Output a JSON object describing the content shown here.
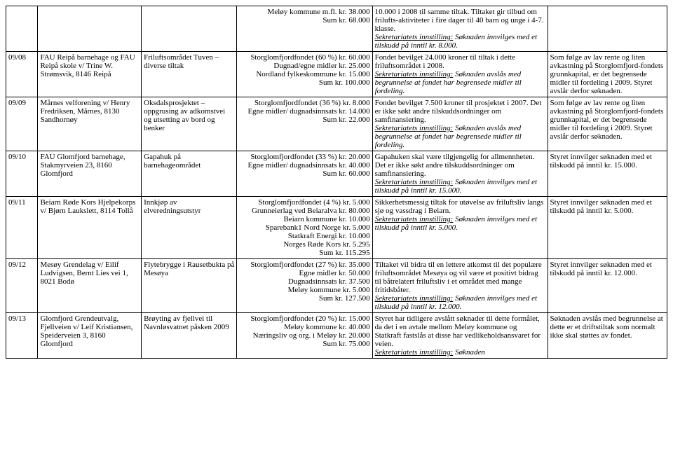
{
  "rows": [
    {
      "id": "",
      "applicant": "",
      "project": "",
      "financing": [
        "Meløy kommune m.fl. kr. 38.000",
        "Sum kr. 68.000"
      ],
      "evaluation_pre": "10.000 i 2008 til samme tiltak. Tiltaket gir tilbud om frilufts-aktiviteter i fire dager til 40 barn og unge i 4-7. klasse.",
      "evaluation_sek_label": "Sekretariatets innstilling:",
      "evaluation_sek_text": "Søknaden innvilges med et tilskudd på inntil kr. 8.000.",
      "decision": ""
    },
    {
      "id": "09/08",
      "applicant": "FAU Reipå barnehage og FAU Reipå skole v/ Trine W. Strømsvik, 8146 Reipå",
      "project": "Friluftsområdet Tuven – diverse tiltak",
      "financing": [
        "Storglomfjordfondet (60 %) kr. 60.000",
        "Dugnad/egne midler kr. 25.000",
        "Nordland fylkeskommune kr. 15.000",
        "Sum kr. 100.000"
      ],
      "evaluation_pre": "Fondet bevilget 24.000 kroner til tiltak i dette friluftsområdet i 2008.",
      "evaluation_sek_label": "Sekretariatets innstilling:",
      "evaluation_sek_text": "Søknaden avslås med begrunnelse at fondet har begrensede midler til fordeling.",
      "decision": "Som følge av lav rente og liten avkastning på Storglomfjord-fondets grunnkapital, er det begrensede midler til fordeling i 2009. Styret avslår derfor søknaden."
    },
    {
      "id": "09/09",
      "applicant": "Mårnes velforening v/ Henry Fredriksen, Mårnes, 8130 Sandhornøy",
      "project": "Oksdalsprosjektet – oppgrusing av adkomstvei og utsetting av bord og benker",
      "financing": [
        "Storglomfjordfondet (36 %) kr. 8.000",
        "Egne midler/ dugnadsinnsats kr. 14.000",
        "Sum kr. 22.000"
      ],
      "evaluation_pre": "Fondet bevilget 7.500 kroner til prosjektet i 2007. Det er ikke søkt andre tilskuddsordninger om samfinansiering.",
      "evaluation_sek_label": "Sekretariatets innstilling:",
      "evaluation_sek_text": "Søknaden avslås med begrunnelse at fondet har begrensede midler til fordeling.",
      "decision": "Som følge av lav rente og liten avkastning på Storglomfjord-fondets grunnkapital, er det begrensede midler til fordeling i 2009. Styret avslår derfor søknaden."
    },
    {
      "id": "09/10",
      "applicant": "FAU Glomfjord barnehage, Stakmyrveien 23, 8160 Glomfjord",
      "project": "Gapahuk på barnehageområdet",
      "financing": [
        "Storglomfjordfondet (33 %) kr. 20.000",
        "Egne midler/ dugnadsinnsats kr. 40.000",
        "Sum kr. 60.000"
      ],
      "evaluation_pre": "Gapahuken skal være tilgjengelig for allmennheten. Det er ikke søkt andre tilskuddsordninger om samfinansiering.",
      "evaluation_sek_label": "Sekretariatets innstilling:",
      "evaluation_sek_text": "Søknaden innvilges med et tilskudd på inntil kr. 15.000.",
      "decision": "Styret innvilger søknaden med et tilskudd på inntil kr. 15.000."
    },
    {
      "id": "09/11",
      "applicant": "Beiarn Røde Kors Hjelpekorps v/ Bjørn Laukslett, 8114 Tollå",
      "project": "Innkjøp av elveredningsutstyr",
      "financing": [
        "Storglomfjordfondet (4 %) kr. 5.000",
        "Grunneierlag ved Beiaralva kr. 80.000",
        "Beiarn kommune kr. 10.000",
        "Sparebank1 Nord Norge kr. 5.000",
        "Statkraft Energi kr. 10.000",
        "Norges Røde Kors kr. 5.295",
        "Sum kr. 115.295"
      ],
      "evaluation_pre": "Sikkerhetsmessig tiltak for utøvelse av friluftsliv langs sjø og vassdrag i Beiarn.",
      "evaluation_sek_label": "Sekretariatets innstilling:",
      "evaluation_sek_text": "Søknaden innvilges med et tilskudd på inntil kr. 5.000.",
      "decision": "Styret innvilger søknaden med et tilskudd på inntil kr. 5.000."
    },
    {
      "id": "09/12",
      "applicant": "Mesøy Grendelag v/ Eilif Ludvigsen, Bernt Lies vei 1, 8021 Bodø",
      "project": "Flytebrygge i Rausetbukta på Mesøya",
      "financing": [
        "Storglomfjordfondet (27 %) kr. 35.000",
        "Egne midler kr. 50.000",
        "Dugnadsinnsats kr. 37.500",
        "Meløy kommune kr. 5.000",
        "Sum kr. 127.500"
      ],
      "evaluation_pre": "Tiltaket vil bidra til en lettere atkomst til det populære friluftsområdet Mesøya og vil være et positivt bidrag til båtrelatert friluftsliv i et området med mange fritidsbåter.",
      "evaluation_sek_label": "Sekretariatets innstilling:",
      "evaluation_sek_text": "Søknaden innvilges med et tilskudd på inntil kr. 12.000.",
      "decision": "Styret innvilger søknaden med et tilskudd på inntil kr. 12.000."
    },
    {
      "id": "09/13",
      "applicant": "Glomfjord Grendeutvalg, Fjellveien v/ Leif Kristiansen, Speiderveien 3, 8160 Glomfjord",
      "project": "Brøyting av fjellvei til Navnløsvatnet påsken 2009",
      "financing": [
        "Storglomfjordfondet (20 %) kr. 15.000",
        "Meløy kommune kr. 40.000",
        "Næringsliv og org. i Meløy kr. 20.000",
        "Sum kr. 75.000"
      ],
      "evaluation_pre": "Styret har tidligere avslått søknader til dette formålet, da det i en avtale mellom Meløy kommune og Statkraft fastslås at disse har vedlikeholdsansvaret for veien.",
      "evaluation_sek_label": "Sekretariatets innstilling:",
      "evaluation_sek_text": "Søknaden",
      "decision": "Søknaden avslås med begrunnelse at dette er et driftstiltak som normalt ikke skal støttes av fondet."
    }
  ]
}
